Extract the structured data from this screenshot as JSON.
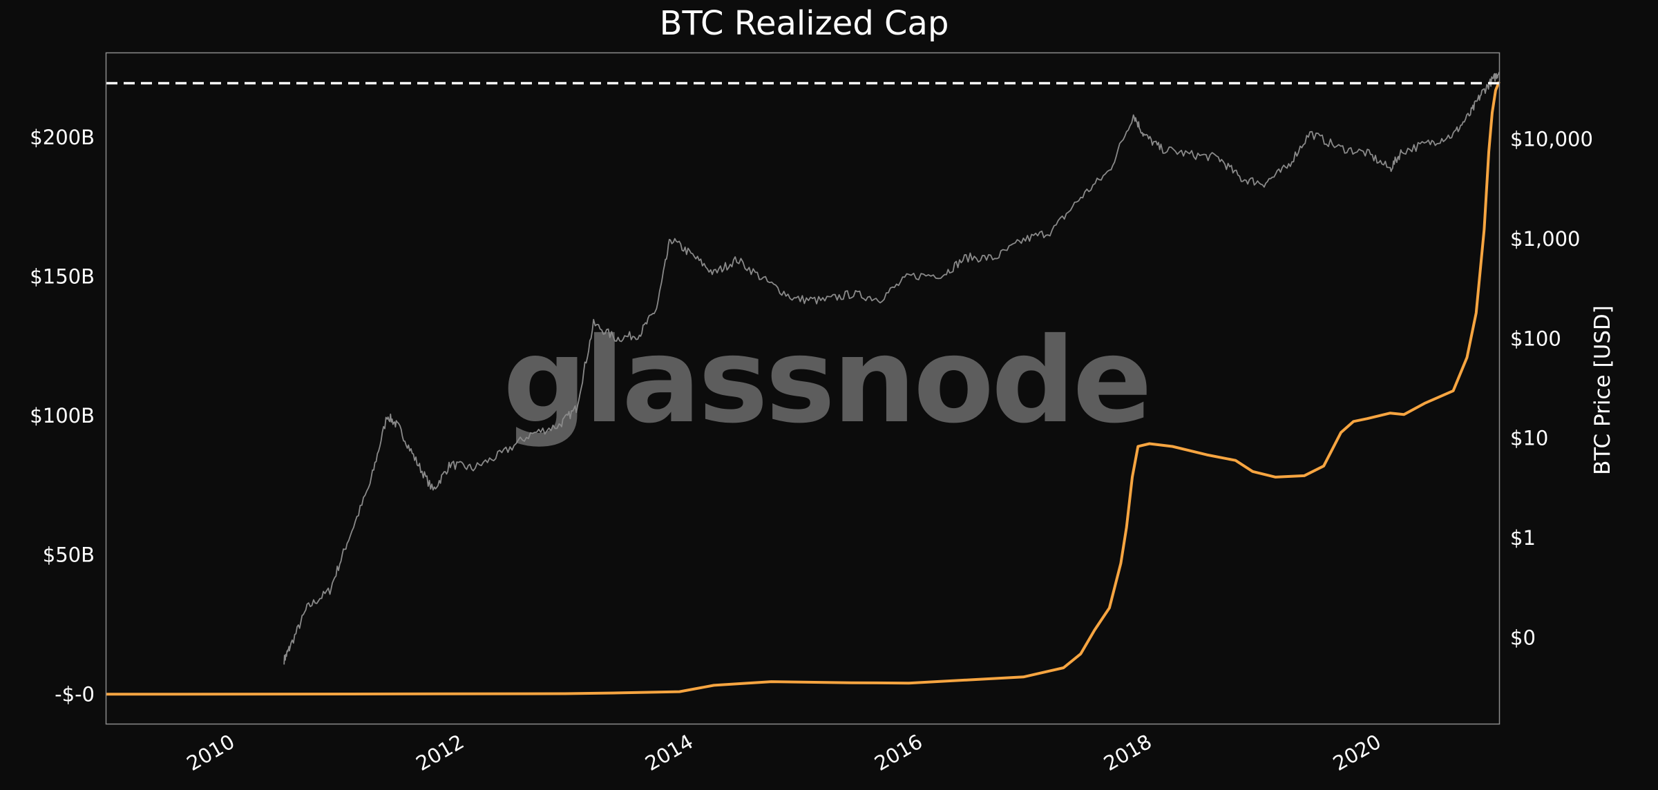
{
  "chart_data": {
    "type": "line",
    "title": "BTC Realized Cap",
    "watermark": "glassnode",
    "ylabel_right": "BTC Price [USD]",
    "x_ticks": [
      "2010",
      "2012",
      "2014",
      "2016",
      "2018",
      "2020"
    ],
    "left_axis": {
      "ticks": [
        {
          "label": "-$-0",
          "value": 0
        },
        {
          "label": "$50B",
          "value": 50
        },
        {
          "label": "$100B",
          "value": 100
        },
        {
          "label": "$150B",
          "value": 150
        },
        {
          "label": "$200B",
          "value": 200
        }
      ],
      "ylim": [
        -10.6,
        230.3
      ]
    },
    "right_axis": {
      "scale": "log",
      "ticks": [
        {
          "label": "$0",
          "value": 0.1
        },
        {
          "label": "$1",
          "value": 1
        },
        {
          "label": "$10",
          "value": 10
        },
        {
          "label": "$100",
          "value": 100
        },
        {
          "label": "$1,000",
          "value": 1000
        },
        {
          "label": "$10,000",
          "value": 10000
        }
      ],
      "ylim_log10": [
        -1.86,
        4.86
      ]
    },
    "xlim": [
      2009.0,
      2021.15
    ],
    "reference_line": {
      "value": 219.5,
      "axis": "left",
      "style": "dashed",
      "color": "#ffffff"
    },
    "grid": false,
    "series": [
      {
        "name": "Realized Cap",
        "axis": "left",
        "color": "#f7a541",
        "points": [
          [
            2009.0,
            0
          ],
          [
            2011.5,
            0.1
          ],
          [
            2013.0,
            0.2
          ],
          [
            2013.5,
            0.5
          ],
          [
            2014.0,
            0.9
          ],
          [
            2014.3,
            3.2
          ],
          [
            2014.8,
            4.5
          ],
          [
            2015.5,
            4.1
          ],
          [
            2016.0,
            4.0
          ],
          [
            2016.6,
            5.3
          ],
          [
            2017.0,
            6.2
          ],
          [
            2017.35,
            9.5
          ],
          [
            2017.5,
            14.5
          ],
          [
            2017.62,
            23.0
          ],
          [
            2017.75,
            31.0
          ],
          [
            2017.85,
            47.0
          ],
          [
            2017.9,
            60.0
          ],
          [
            2017.95,
            78.0
          ],
          [
            2018.0,
            89.0
          ],
          [
            2018.1,
            90.0
          ],
          [
            2018.3,
            89.0
          ],
          [
            2018.6,
            86.0
          ],
          [
            2018.85,
            84.0
          ],
          [
            2019.0,
            80.0
          ],
          [
            2019.2,
            78.0
          ],
          [
            2019.45,
            78.5
          ],
          [
            2019.62,
            82.0
          ],
          [
            2019.77,
            94.0
          ],
          [
            2019.88,
            98.0
          ],
          [
            2020.0,
            99.0
          ],
          [
            2020.2,
            101.0
          ],
          [
            2020.32,
            100.5
          ],
          [
            2020.5,
            104.5
          ],
          [
            2020.75,
            109.0
          ],
          [
            2020.87,
            121.0
          ],
          [
            2020.95,
            137.0
          ],
          [
            2021.02,
            167.0
          ],
          [
            2021.06,
            195.0
          ],
          [
            2021.09,
            209.0
          ],
          [
            2021.12,
            217.0
          ],
          [
            2021.15,
            220.0
          ]
        ]
      },
      {
        "name": "BTC Price",
        "axis": "right",
        "color": "#8a8a8a",
        "points": [
          [
            2010.55,
            0.06
          ],
          [
            2010.6,
            0.08
          ],
          [
            2010.75,
            0.2
          ],
          [
            2010.95,
            0.3
          ],
          [
            2011.1,
            0.9
          ],
          [
            2011.3,
            3.5
          ],
          [
            2011.45,
            17.0
          ],
          [
            2011.55,
            13.0
          ],
          [
            2011.7,
            6.0
          ],
          [
            2011.85,
            3.0
          ],
          [
            2012.0,
            5.5
          ],
          [
            2012.2,
            5.0
          ],
          [
            2012.45,
            7.0
          ],
          [
            2012.7,
            11.0
          ],
          [
            2012.95,
            13.5
          ],
          [
            2013.1,
            20.0
          ],
          [
            2013.25,
            140.0
          ],
          [
            2013.45,
            100.0
          ],
          [
            2013.65,
            110.0
          ],
          [
            2013.8,
            200.0
          ],
          [
            2013.92,
            1000.0
          ],
          [
            2014.1,
            700.0
          ],
          [
            2014.3,
            450.0
          ],
          [
            2014.5,
            620.0
          ],
          [
            2014.75,
            380.0
          ],
          [
            2015.0,
            250.0
          ],
          [
            2015.25,
            240.0
          ],
          [
            2015.5,
            280.0
          ],
          [
            2015.75,
            250.0
          ],
          [
            2016.0,
            420.0
          ],
          [
            2016.3,
            440.0
          ],
          [
            2016.5,
            650.0
          ],
          [
            2016.75,
            640.0
          ],
          [
            2017.0,
            970.0
          ],
          [
            2017.25,
            1200.0
          ],
          [
            2017.5,
            2600.0
          ],
          [
            2017.75,
            4800.0
          ],
          [
            2017.96,
            17500.0
          ],
          [
            2018.05,
            11000.0
          ],
          [
            2018.2,
            8000.0
          ],
          [
            2018.45,
            7000.0
          ],
          [
            2018.7,
            6500.0
          ],
          [
            2018.9,
            4000.0
          ],
          [
            2019.1,
            3600.0
          ],
          [
            2019.3,
            5200.0
          ],
          [
            2019.5,
            11500.0
          ],
          [
            2019.75,
            8200.0
          ],
          [
            2020.0,
            7200.0
          ],
          [
            2020.2,
            5000.0
          ],
          [
            2020.3,
            7500.0
          ],
          [
            2020.55,
            9200.0
          ],
          [
            2020.75,
            11000.0
          ],
          [
            2020.9,
            18000.0
          ],
          [
            2021.0,
            29000.0
          ],
          [
            2021.1,
            40000.0
          ],
          [
            2021.15,
            47000.0
          ]
        ]
      }
    ]
  }
}
